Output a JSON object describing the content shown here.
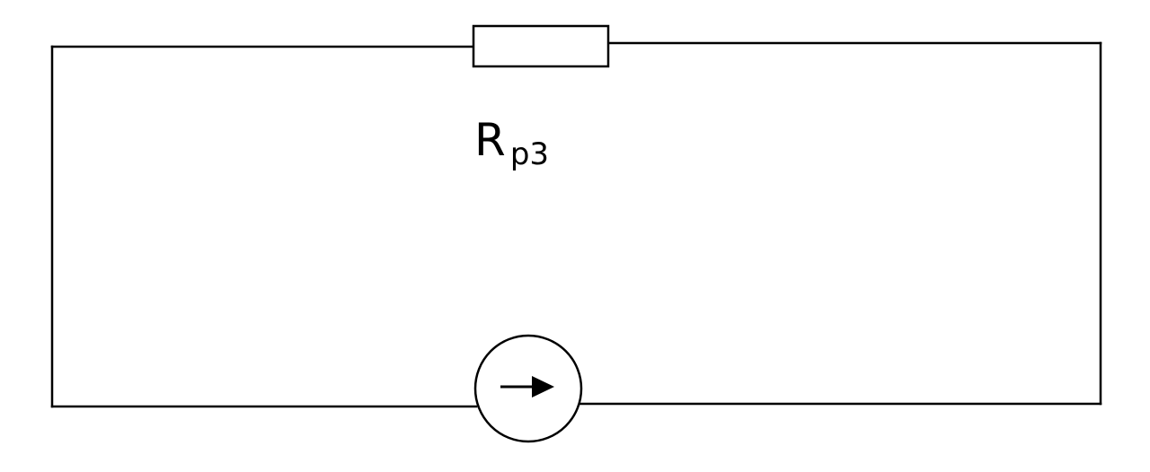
{
  "resistor": {
    "label_main": "R",
    "label_subscript": "p3"
  },
  "current_source": {
    "arrow_icon": "right-arrow-icon"
  },
  "colors": {
    "stroke": "#000000",
    "background": "#ffffff"
  }
}
